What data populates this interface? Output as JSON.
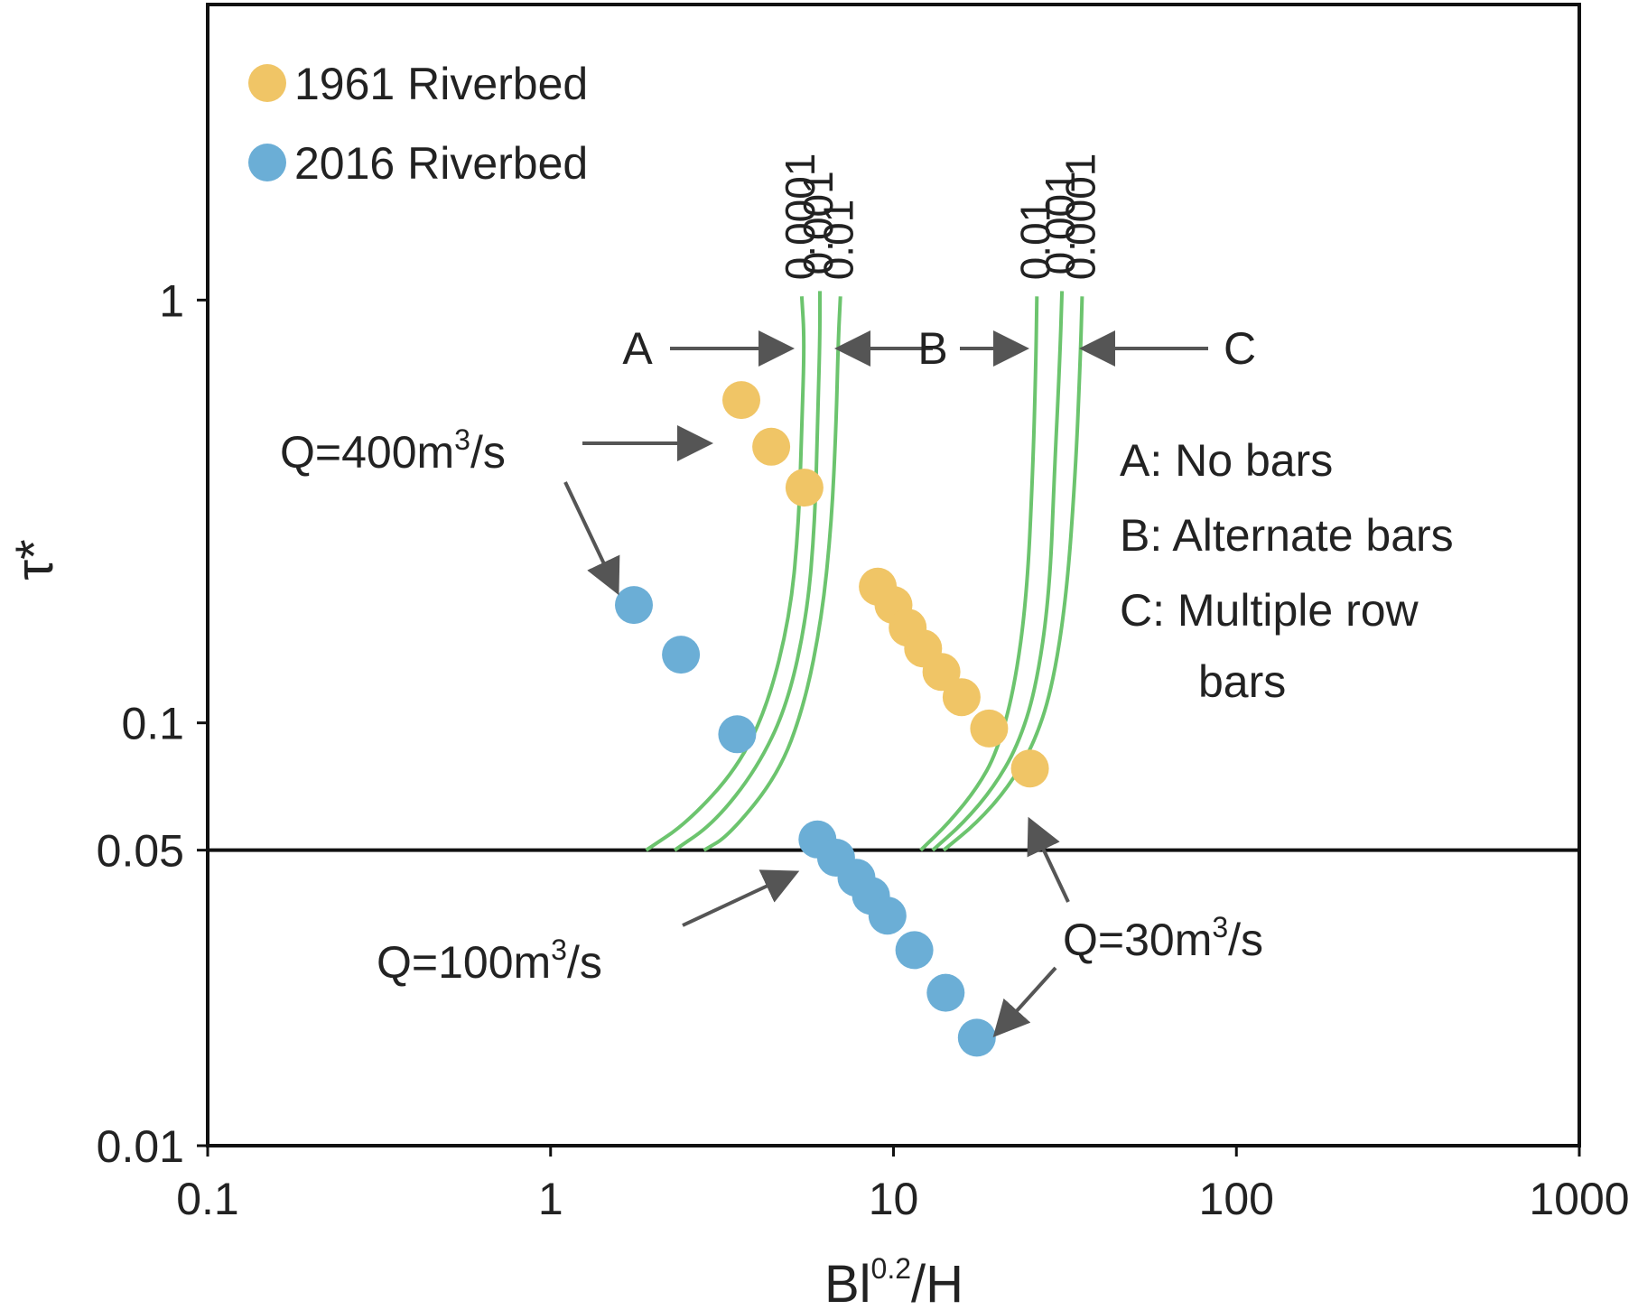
{
  "chart_data": {
    "type": "scatter",
    "xscale": "log",
    "yscale": "log",
    "xlabel": {
      "main": "Bl",
      "sup": "0.2",
      "tail": "/H"
    },
    "ylabel": "τ*",
    "xlim": [
      0.1,
      1000
    ],
    "ylim": [
      0.01,
      5
    ],
    "x_ticks": [
      {
        "value": 0.1,
        "label": "0.1"
      },
      {
        "value": 1,
        "label": "1"
      },
      {
        "value": 10,
        "label": "10"
      },
      {
        "value": 100,
        "label": "100"
      },
      {
        "value": 1000,
        "label": "1000"
      }
    ],
    "y_ticks": [
      {
        "value": 0.01,
        "label": "0.01"
      },
      {
        "value": 0.05,
        "label": "0.05"
      },
      {
        "value": 0.1,
        "label": "0.1"
      },
      {
        "value": 1,
        "label": "1"
      }
    ],
    "reference_line": {
      "y": 0.05
    },
    "series": [
      {
        "name": "1961 Riverbed",
        "color": "#f0c566",
        "points": [
          {
            "x": 3.6,
            "y": 0.58
          },
          {
            "x": 4.4,
            "y": 0.45
          },
          {
            "x": 5.5,
            "y": 0.36
          },
          {
            "x": 9.0,
            "y": 0.21
          },
          {
            "x": 10.0,
            "y": 0.19
          },
          {
            "x": 11.0,
            "y": 0.168
          },
          {
            "x": 12.2,
            "y": 0.15
          },
          {
            "x": 13.8,
            "y": 0.132
          },
          {
            "x": 15.8,
            "y": 0.115
          },
          {
            "x": 19.0,
            "y": 0.097
          },
          {
            "x": 25.0,
            "y": 0.078
          }
        ]
      },
      {
        "name": "2016 Riverbed",
        "color": "#6baed6",
        "points": [
          {
            "x": 1.75,
            "y": 0.19
          },
          {
            "x": 2.4,
            "y": 0.145
          },
          {
            "x": 3.5,
            "y": 0.094
          },
          {
            "x": 6.0,
            "y": 0.053
          },
          {
            "x": 6.8,
            "y": 0.048
          },
          {
            "x": 7.8,
            "y": 0.043
          },
          {
            "x": 8.6,
            "y": 0.039
          },
          {
            "x": 9.6,
            "y": 0.035
          },
          {
            "x": 11.5,
            "y": 0.029
          },
          {
            "x": 14.2,
            "y": 0.023
          },
          {
            "x": 17.5,
            "y": 0.018
          }
        ]
      }
    ],
    "regime_curves": {
      "color": "#6cc46e",
      "left": [
        {
          "label": "0.0001",
          "points": [
            [
              1.9,
              0.05
            ],
            [
              2.5,
              0.058
            ],
            [
              3.5,
              0.078
            ],
            [
              4.3,
              0.11
            ],
            [
              5.0,
              0.18
            ],
            [
              5.3,
              0.3
            ],
            [
              5.4,
              0.5
            ],
            [
              5.5,
              0.8
            ],
            [
              5.4,
              1.02
            ]
          ]
        },
        {
          "label": "0.001",
          "points": [
            [
              2.3,
              0.05
            ],
            [
              3.0,
              0.058
            ],
            [
              4.0,
              0.078
            ],
            [
              4.9,
              0.11
            ],
            [
              5.6,
              0.18
            ],
            [
              5.9,
              0.3
            ],
            [
              6.0,
              0.5
            ],
            [
              6.1,
              0.8
            ],
            [
              6.1,
              1.05
            ]
          ]
        },
        {
          "label": "0.01",
          "points": [
            [
              2.8,
              0.05
            ],
            [
              3.3,
              0.054
            ],
            [
              4.6,
              0.075
            ],
            [
              5.5,
              0.11
            ],
            [
              6.2,
              0.18
            ],
            [
              6.6,
              0.3
            ],
            [
              6.8,
              0.5
            ],
            [
              6.9,
              0.8
            ],
            [
              7.0,
              1.02
            ]
          ]
        }
      ],
      "right": [
        {
          "label": "0.01",
          "points": [
            [
              12.0,
              0.05
            ],
            [
              14.5,
              0.058
            ],
            [
              17.5,
              0.07
            ],
            [
              20.0,
              0.085
            ],
            [
              22.5,
              0.12
            ],
            [
              24.5,
              0.2
            ],
            [
              25.5,
              0.4
            ],
            [
              26.0,
              0.7
            ],
            [
              26.2,
              1.02
            ]
          ]
        },
        {
          "label": "0.001",
          "points": [
            [
              13.0,
              0.05
            ],
            [
              16.0,
              0.058
            ],
            [
              19.5,
              0.07
            ],
            [
              23.0,
              0.088
            ],
            [
              26.0,
              0.12
            ],
            [
              28.5,
              0.2
            ],
            [
              29.5,
              0.4
            ],
            [
              30.5,
              0.7
            ],
            [
              31.0,
              1.05
            ]
          ]
        },
        {
          "label": "0.0001",
          "points": [
            [
              14.0,
              0.05
            ],
            [
              17.5,
              0.058
            ],
            [
              21.5,
              0.07
            ],
            [
              25.5,
              0.088
            ],
            [
              29.0,
              0.12
            ],
            [
              32.0,
              0.2
            ],
            [
              34.0,
              0.4
            ],
            [
              35.0,
              0.7
            ],
            [
              35.5,
              1.02
            ]
          ]
        }
      ]
    },
    "region_markers": [
      {
        "label": "A",
        "x": 2.55,
        "y": 0.93
      },
      {
        "label": "B",
        "x": 10.9,
        "y": 0.93
      },
      {
        "label": "C",
        "x": 60,
        "y": 0.93
      }
    ],
    "region_key": [
      "A: No bars",
      "B: Alternate bars",
      "C: Multiple row",
      "bars"
    ],
    "annotations": [
      {
        "text": "Q=400m",
        "sup": "3",
        "tail": "/s"
      },
      {
        "text": "Q=100m",
        "sup": "3",
        "tail": "/s"
      },
      {
        "text": "Q=30m",
        "sup": "3",
        "tail": "/s"
      }
    ],
    "legend": {
      "position": "top-left"
    }
  }
}
